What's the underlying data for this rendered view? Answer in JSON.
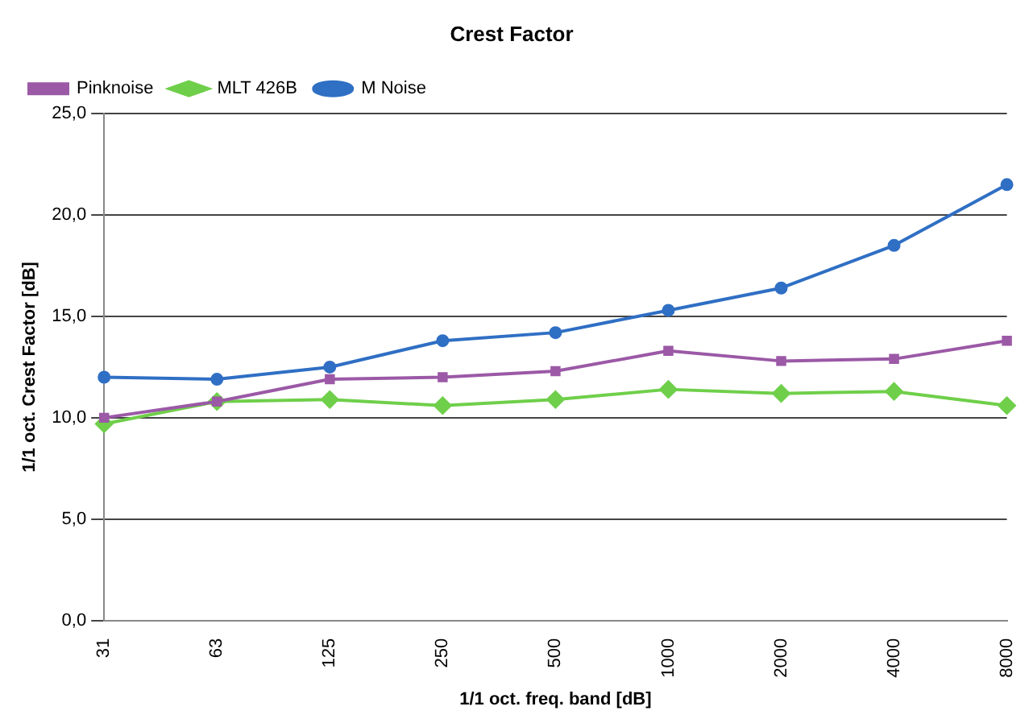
{
  "chart_data": {
    "type": "line",
    "title": "Crest Factor",
    "xlabel": "1/1 oct. freq. band [dB]",
    "ylabel": "1/1 oct. Crest Factor [dB]",
    "categories": [
      "31",
      "63",
      "125",
      "250",
      "500",
      "1000",
      "2000",
      "4000",
      "8000"
    ],
    "series": [
      {
        "name": "Pinknoise",
        "color": "#9b59a6",
        "marker": "square",
        "values": [
          10.0,
          10.8,
          11.9,
          12.0,
          12.3,
          13.3,
          12.8,
          12.9,
          13.8
        ]
      },
      {
        "name": "MLT 426B",
        "color": "#6fcf4a",
        "marker": "diamond",
        "values": [
          9.7,
          10.8,
          10.9,
          10.6,
          10.9,
          11.4,
          11.2,
          11.3,
          10.6
        ]
      },
      {
        "name": "M Noise",
        "color": "#2f6fc4",
        "marker": "circle",
        "values": [
          12.0,
          11.9,
          12.5,
          13.8,
          14.2,
          15.3,
          16.4,
          18.5,
          21.5
        ]
      }
    ],
    "ylim": [
      0,
      25
    ],
    "yticks": [
      {
        "value": 0,
        "label": "0,0"
      },
      {
        "value": 5,
        "label": "5,0"
      },
      {
        "value": 10,
        "label": "10,0"
      },
      {
        "value": 15,
        "label": "15,0"
      },
      {
        "value": 20,
        "label": "20,0"
      },
      {
        "value": 25,
        "label": "25,0"
      }
    ],
    "grid": "y",
    "legend": "top left",
    "line_style": "solid"
  }
}
